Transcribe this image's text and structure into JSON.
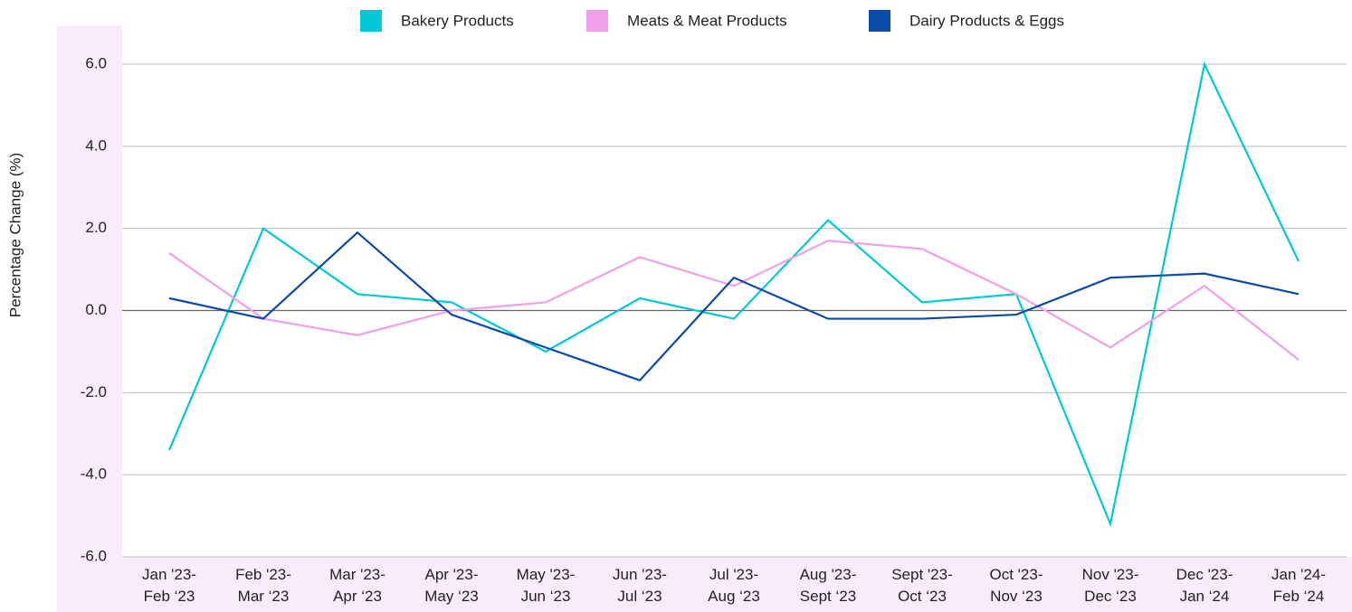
{
  "chart_data": {
    "type": "line",
    "y_label": "Percentage Change (%)",
    "categories": [
      [
        "Jan '23-",
        "Feb ‘23"
      ],
      [
        "Feb '23-",
        "Mar ‘23"
      ],
      [
        "Mar '23-",
        "Apr ‘23"
      ],
      [
        "Apr '23-",
        "May ‘23"
      ],
      [
        "May '23-",
        "Jun ‘23"
      ],
      [
        "Jun '23-",
        "Jul ‘23"
      ],
      [
        "Jul '23-",
        "Aug ‘23"
      ],
      [
        "Aug '23-",
        "Sept ‘23"
      ],
      [
        "Sept '23-",
        "Oct ‘23"
      ],
      [
        "Oct '23-",
        "Nov ‘23"
      ],
      [
        "Nov '23-",
        "Dec ‘23"
      ],
      [
        "Dec '23-",
        "Jan ‘24"
      ],
      [
        "Jan '24-",
        "Feb ‘24"
      ]
    ],
    "series": [
      {
        "name": "Bakery Products",
        "color": "#00c8d7",
        "values": [
          -3.4,
          2.0,
          0.4,
          0.2,
          -1.0,
          0.3,
          -0.2,
          2.2,
          0.2,
          0.4,
          -5.2,
          6.0,
          1.2
        ]
      },
      {
        "name": "Meats & Meat Products",
        "color": "#f0a0e8",
        "values": [
          1.4,
          -0.2,
          -0.6,
          0.0,
          0.2,
          1.3,
          0.6,
          1.7,
          1.5,
          0.4,
          -0.9,
          0.6,
          -1.2
        ]
      },
      {
        "name": "Dairy Products & Eggs",
        "color": "#0b4aa8",
        "values": [
          0.3,
          -0.2,
          1.9,
          -0.1,
          -0.9,
          -1.7,
          0.8,
          -0.2,
          -0.2,
          -0.1,
          0.8,
          0.9,
          0.4
        ]
      }
    ],
    "ylim": [
      -6,
      6
    ],
    "yticks": [
      {
        "value": -6,
        "label": "-6.0"
      },
      {
        "value": -4,
        "label": "-4.0"
      },
      {
        "value": -2,
        "label": "-2.0"
      },
      {
        "value": 0,
        "label": "0.0"
      },
      {
        "value": 2,
        "label": "2.0"
      },
      {
        "value": 4,
        "label": "4.0"
      },
      {
        "value": 6,
        "label": "6.0"
      }
    ],
    "grid": true,
    "legend": "top"
  }
}
